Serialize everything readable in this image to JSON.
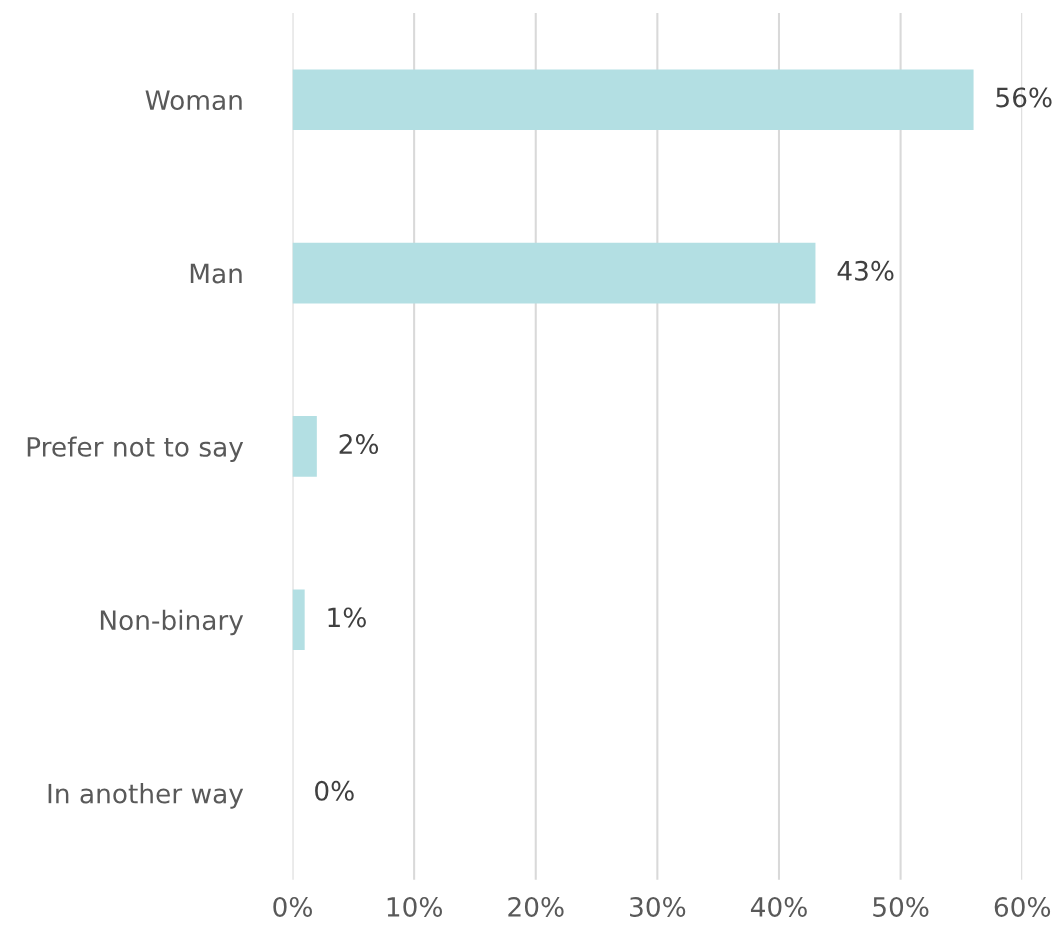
{
  "chart_data": {
    "type": "bar",
    "orientation": "horizontal",
    "categories": [
      "Woman",
      "Man",
      "Prefer not to say",
      "Non-binary",
      "In another way"
    ],
    "values": [
      56,
      43,
      2,
      1,
      0
    ],
    "value_labels": [
      "56%",
      "43%",
      "2%",
      "1%",
      "0%"
    ],
    "color": "#b3dfe3",
    "xlim": [
      0,
      60
    ],
    "xticks": [
      {
        "value": 0,
        "label": "0%"
      },
      {
        "value": 10,
        "label": "10%"
      },
      {
        "value": 20,
        "label": "20%"
      },
      {
        "value": 30,
        "label": "30%"
      },
      {
        "value": 40,
        "label": "40%"
      },
      {
        "value": 50,
        "label": "50%"
      },
      {
        "value": 60,
        "label": "60%"
      }
    ],
    "grid": "x",
    "legend": false
  }
}
